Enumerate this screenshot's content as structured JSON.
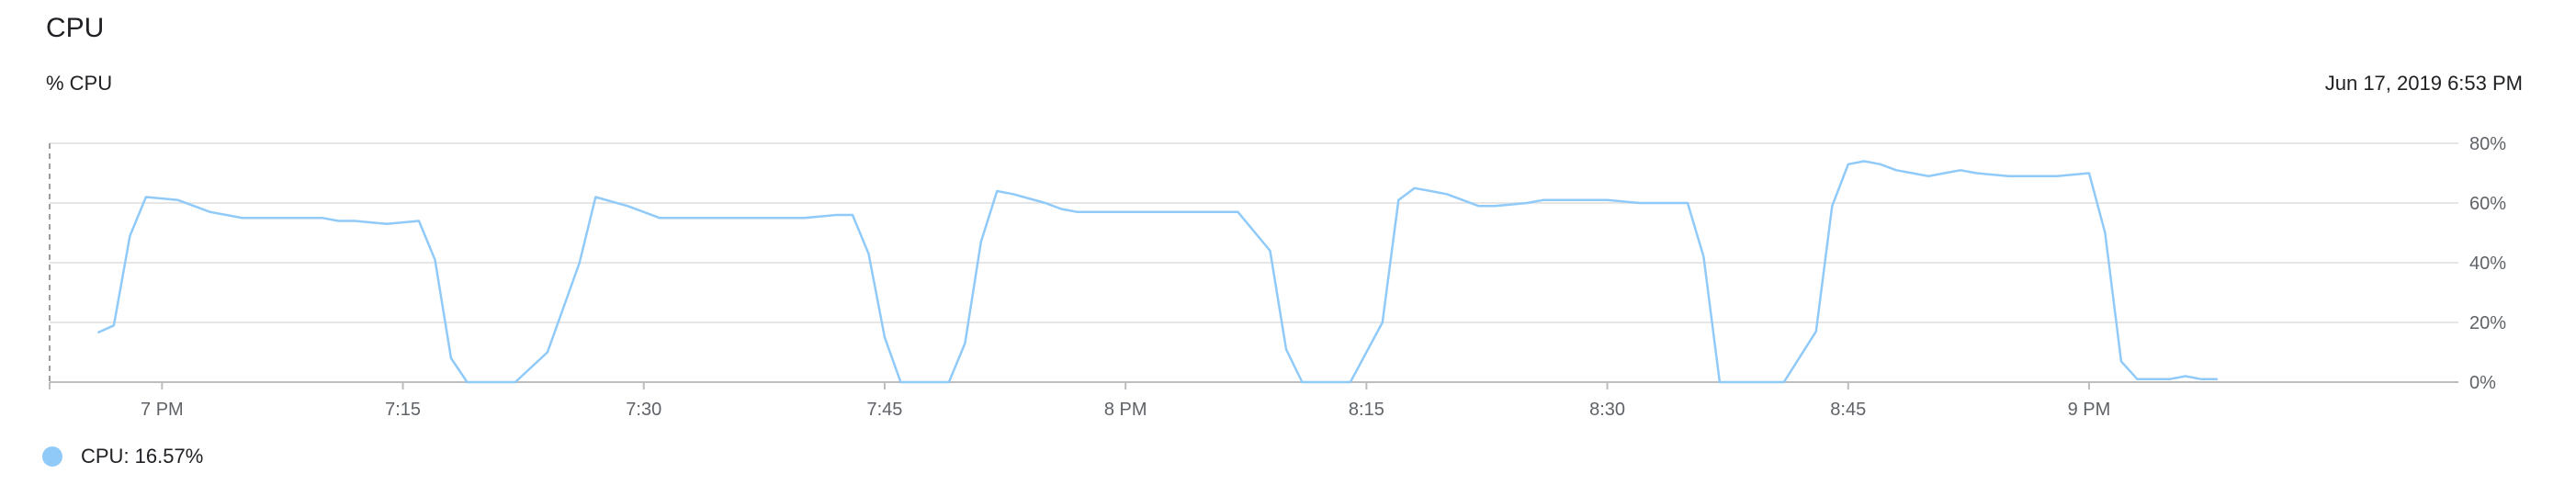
{
  "card": {
    "title": "CPU",
    "subtitle": "% CPU",
    "timestamp": "Jun 17, 2019 6:53 PM"
  },
  "legend": {
    "label": "CPU: 16.57%",
    "color": "#90caf9"
  },
  "chart_data": {
    "type": "line",
    "title": "CPU",
    "ylabel": "% CPU",
    "xlabel": "",
    "ylim": [
      0,
      80
    ],
    "xlim": [
      "6:53 PM",
      "9:23 PM"
    ],
    "y_ticks": [
      0,
      20,
      40,
      60,
      80
    ],
    "y_tick_labels": [
      "0%",
      "20%",
      "40%",
      "60%",
      "80%"
    ],
    "x_ticks": [
      "6:53 PM",
      "7:00 PM",
      "7:15 PM",
      "7:30 PM",
      "7:45 PM",
      "8:00 PM",
      "8:15 PM",
      "8:30 PM",
      "8:45 PM",
      "9:00 PM"
    ],
    "x_tick_labels": [
      "",
      "7 PM",
      "7:15",
      "7:30",
      "7:45",
      "8 PM",
      "8:15",
      "8:30",
      "8:45",
      "9 PM"
    ],
    "grid": true,
    "line_color": "#90caf9",
    "series": [
      {
        "name": "CPU",
        "x": [
          "6:56 PM",
          "6:57 PM",
          "6:58 PM",
          "6:59 PM",
          "7:01 PM",
          "7:02 PM",
          "7:03 PM",
          "7:04 PM",
          "7:05 PM",
          "7:06 PM",
          "7:08 PM",
          "7:10 PM",
          "7:11 PM",
          "7:12 PM",
          "7:14 PM",
          "7:16 PM",
          "7:17 PM",
          "7:18 PM",
          "7:19 PM",
          "7:21 PM",
          "7:22 PM",
          "7:24 PM",
          "7:26 PM",
          "7:27 PM",
          "7:29 PM",
          "7:30 PM",
          "7:31 PM",
          "7:32 PM",
          "7:33 PM",
          "7:35 PM",
          "7:36 PM",
          "7:38 PM",
          "7:40 PM",
          "7:42 PM",
          "7:43 PM",
          "7:44 PM",
          "7:45 PM",
          "7:46 PM",
          "7:47 PM",
          "7:49 PM",
          "7:50 PM",
          "7:51 PM",
          "7:52 PM",
          "7:53 PM",
          "7:55 PM",
          "7:56 PM",
          "7:57 PM",
          "7:58 PM",
          "7:59 PM",
          "8:00 PM",
          "8:01 PM",
          "8:02 PM",
          "8:03 PM",
          "8:04 PM",
          "8:07 PM",
          "8:09 PM",
          "8:10 PM",
          "8:11 PM",
          "8:12 PM",
          "8:14 PM",
          "8:16 PM",
          "8:17 PM",
          "8:18 PM",
          "8:19 PM",
          "8:20 PM",
          "8:21 PM",
          "8:22 PM",
          "8:23 PM",
          "8:25 PM",
          "8:26 PM",
          "8:28 PM",
          "8:30 PM",
          "8:32 PM",
          "8:34 PM",
          "8:35 PM",
          "8:36 PM",
          "8:37 PM",
          "8:38 PM",
          "8:39 PM",
          "8:41 PM",
          "8:43 PM",
          "8:44 PM",
          "8:45 PM",
          "8:46 PM",
          "8:47 PM",
          "8:48 PM",
          "8:49 PM",
          "8:50 PM",
          "8:51 PM",
          "8:52 PM",
          "8:53 PM",
          "8:55 PM",
          "8:56 PM",
          "8:58 PM",
          "9:00 PM",
          "9:01 PM",
          "9:02 PM",
          "9:03 PM",
          "9:04 PM",
          "9:05 PM",
          "9:06 PM",
          "9:07 PM",
          "9:08 PM"
        ],
        "values": [
          16.57,
          19,
          49,
          62,
          61,
          59,
          57,
          56,
          55,
          55,
          55,
          55,
          54,
          54,
          53,
          54,
          41,
          8,
          0,
          0,
          0,
          10,
          40,
          62,
          59,
          57,
          55,
          55,
          55,
          55,
          55,
          55,
          55,
          56,
          56,
          43,
          15,
          0,
          0,
          0,
          13,
          47,
          64,
          63,
          60,
          58,
          57,
          57,
          57,
          57,
          57,
          57,
          57,
          57,
          57,
          44,
          11,
          0,
          0,
          0,
          20,
          61,
          65,
          64,
          63,
          61,
          59,
          59,
          60,
          61,
          61,
          61,
          60,
          60,
          60,
          42,
          0,
          0,
          0,
          0,
          17,
          59,
          73,
          74,
          73,
          71,
          70,
          69,
          70,
          71,
          70,
          69,
          69,
          69,
          70,
          50,
          7,
          1,
          1,
          1,
          2,
          1,
          1
        ]
      }
    ]
  }
}
